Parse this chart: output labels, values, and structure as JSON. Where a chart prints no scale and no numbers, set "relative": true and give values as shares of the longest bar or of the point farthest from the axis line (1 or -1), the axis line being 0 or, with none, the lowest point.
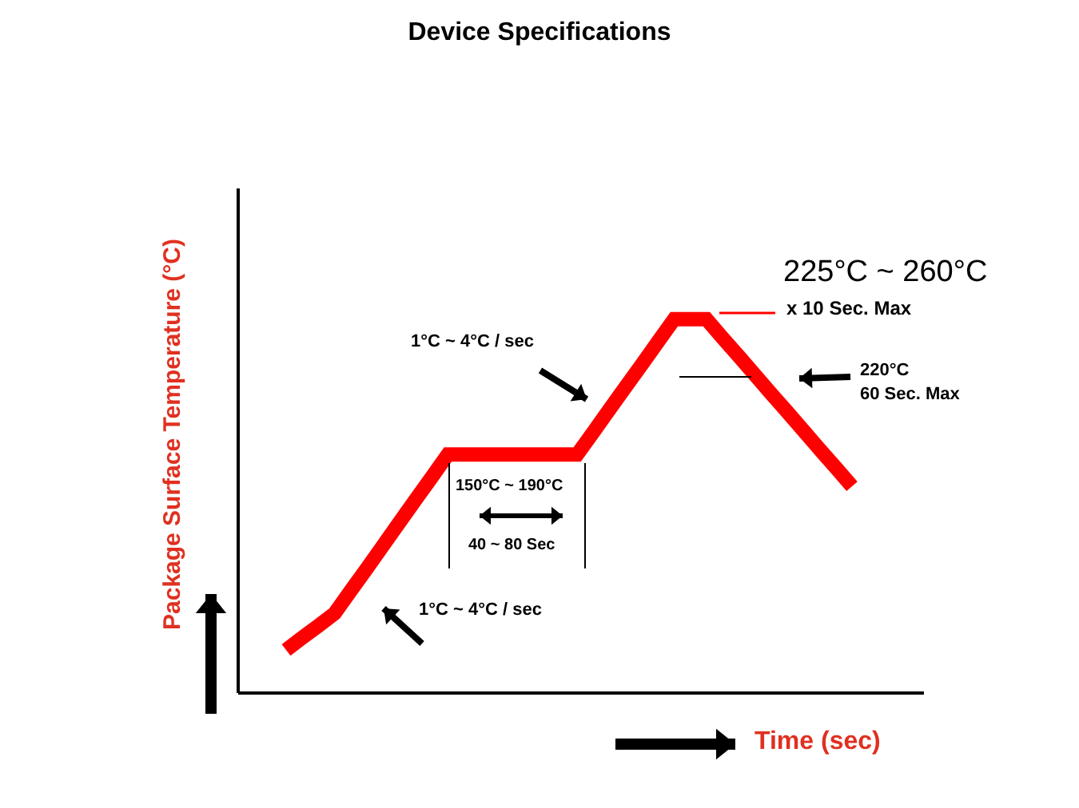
{
  "chart_data": {
    "type": "line",
    "title": "Device Specifications",
    "xlabel": "Time (sec)",
    "ylabel": "Package Surface Temperature (°C)",
    "relative": true,
    "tick_labels": false,
    "grid": false,
    "legend": false,
    "marker": "none",
    "line_style": "solid",
    "categories": [
      null,
      null,
      null,
      null,
      null,
      null,
      null,
      null,
      null,
      null,
      null,
      null,
      null,
      null,
      null,
      null,
      null,
      null,
      null,
      null,
      null,
      null,
      null,
      null,
      null,
      null,
      null,
      null,
      null,
      null,
      null,
      null,
      null,
      null,
      null,
      null
    ],
    "series": [
      {
        "color": "#ff0000",
        "values": [
          0.115,
          0.148,
          0.18,
          0.213,
          0.274,
          0.334,
          0.395,
          0.456,
          0.517,
          0.577,
          0.638,
          0.638,
          0.638,
          0.638,
          0.638,
          0.638,
          0.638,
          0.638,
          0.638,
          0.698,
          0.759,
          0.819,
          0.879,
          0.94,
          1,
          1,
          1,
          0.95,
          0.901,
          0.851,
          0.801,
          0.752,
          0.702,
          0.652,
          0.603,
          0.553
        ]
      }
    ],
    "annotations": [
      "225°C ~ 260°C",
      "x 10 Sec. Max",
      "1°C ~ 4°C / sec",
      "220°C",
      "60 Sec. Max",
      "150°C ~ 190°C",
      "40 ~ 80 Sec",
      "1°C ~ 4°C / sec"
    ]
  }
}
